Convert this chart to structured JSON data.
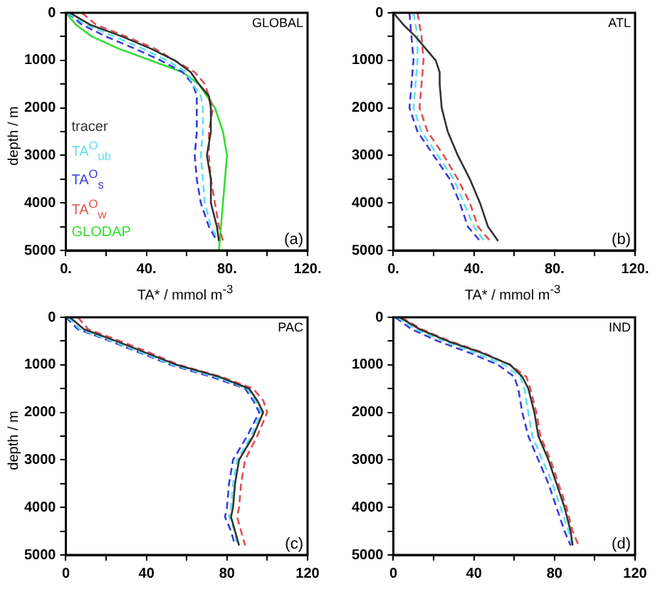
{
  "chart_data": [
    {
      "type": "line",
      "title": "GLOBAL",
      "annotations": [
        "(a)"
      ],
      "xlabel": "TA* / mmol m$^{-3}$",
      "ylabel": "depth / m",
      "legend": "left",
      "xlim": [
        0,
        120
      ],
      "xticks": [
        {
          "value": 0,
          "label": "0."
        },
        {
          "value": 20,
          "label": null
        },
        {
          "value": 40,
          "label": "40."
        },
        {
          "value": 60,
          "label": null
        },
        {
          "value": 80,
          "label": "80."
        },
        {
          "value": 100,
          "label": null
        },
        {
          "value": 120,
          "label": "120."
        }
      ],
      "ylim": [
        5000,
        0
      ],
      "yticks": [
        0,
        {
          "value": 500,
          "label": null
        },
        1000,
        {
          "value": 1500,
          "label": null
        },
        2000,
        {
          "value": 2500,
          "label": null
        },
        3000,
        {
          "value": 3500,
          "label": null
        },
        4000,
        {
          "value": 4500,
          "label": null
        },
        5000
      ],
      "series": [
        {
          "name": "tracer",
          "color": "#333333",
          "line_style": "solid",
          "x": [
            2,
            12,
            28,
            42,
            54,
            62,
            66,
            71,
            72,
            72,
            70,
            72,
            72,
            75,
            76
          ],
          "values": [
            0,
            250,
            500,
            750,
            1000,
            1250,
            1500,
            1750,
            2000,
            2500,
            3000,
            3500,
            4000,
            4500,
            4800
          ]
        },
        {
          "name": "TA$^{O}$$_{ub}$",
          "color": "#5ee0f0",
          "line_style": "dashed",
          "x": [
            1,
            10,
            24,
            38,
            50,
            60,
            63,
            67,
            68,
            68,
            67,
            68,
            69,
            72,
            76
          ],
          "values": [
            0,
            250,
            500,
            750,
            1000,
            1250,
            1500,
            1750,
            2000,
            2500,
            3000,
            3500,
            4000,
            4500,
            4800
          ]
        },
        {
          "name": "TA$^{O}$$_{s}$",
          "color": "#3c3cdc",
          "line_style": "dashed",
          "x": [
            1,
            8,
            20,
            34,
            47,
            58,
            63,
            65,
            65,
            65,
            64,
            65,
            67,
            71,
            75
          ],
          "values": [
            0,
            250,
            500,
            750,
            1000,
            1250,
            1500,
            1750,
            2000,
            2500,
            3000,
            3500,
            4000,
            4500,
            4800
          ]
        },
        {
          "name": "TA$^{O}$$_{w}$",
          "color": "#e05050",
          "line_style": "dashed",
          "x": [
            8,
            15,
            30,
            44,
            54,
            64,
            69,
            71,
            73,
            71,
            71,
            72,
            74,
            76,
            78
          ],
          "values": [
            0,
            250,
            500,
            750,
            1000,
            1250,
            1500,
            1750,
            2000,
            2500,
            3000,
            3500,
            4000,
            4500,
            4800
          ]
        },
        {
          "name": "GLODAP",
          "color": "#33dd33",
          "line_style": "solid",
          "x": [
            0,
            5,
            13,
            26,
            42,
            58,
            66,
            70,
            74,
            78,
            80,
            79,
            78,
            77,
            76
          ],
          "values": [
            0,
            250,
            500,
            750,
            1000,
            1250,
            1500,
            1750,
            2000,
            2500,
            3000,
            3500,
            4000,
            4500,
            5000
          ]
        }
      ]
    },
    {
      "type": "line",
      "title": "ATL",
      "annotations": [
        "(b)"
      ],
      "xlabel": "TA* / mmol m$^{-3}$",
      "xlim": [
        0,
        120
      ],
      "xticks": [
        {
          "value": 0,
          "label": "0."
        },
        {
          "value": 20,
          "label": null
        },
        {
          "value": 40,
          "label": "40."
        },
        {
          "value": 60,
          "label": null
        },
        {
          "value": 80,
          "label": "80."
        },
        {
          "value": 100,
          "label": null
        },
        {
          "value": 120,
          "label": "120."
        }
      ],
      "ylim": [
        5000,
        0
      ],
      "yticks": [
        0,
        {
          "value": 500,
          "label": null
        },
        1000,
        {
          "value": 1500,
          "label": null
        },
        2000,
        {
          "value": 2500,
          "label": null
        },
        3000,
        {
          "value": 3500,
          "label": null
        },
        4000,
        {
          "value": 4500,
          "label": null
        },
        5000
      ],
      "series": [
        {
          "color": "#333333",
          "line_style": "solid",
          "x": [
            0,
            5,
            11,
            16,
            21,
            23,
            23,
            24,
            27,
            32,
            38,
            43,
            47,
            52
          ],
          "values": [
            0,
            250,
            500,
            750,
            1000,
            1250,
            1500,
            2000,
            2500,
            3000,
            3500,
            4000,
            4500,
            4800
          ]
        },
        {
          "color": "#5ee0f0",
          "line_style": "dashed",
          "x": [
            10,
            12,
            12,
            11,
            10,
            14,
            22,
            30,
            35,
            40,
            45
          ],
          "values": [
            0,
            500,
            1000,
            1500,
            2000,
            2500,
            3000,
            3500,
            4000,
            4500,
            4800
          ]
        },
        {
          "color": "#3c3cdc",
          "line_style": "dashed",
          "x": [
            8,
            9,
            10,
            9,
            8,
            12,
            20,
            28,
            33,
            37,
            43
          ],
          "values": [
            0,
            500,
            1000,
            1500,
            2000,
            2500,
            3000,
            3500,
            4000,
            4500,
            4800
          ]
        },
        {
          "color": "#e05050",
          "line_style": "dashed",
          "x": [
            12,
            14,
            15,
            14,
            13,
            17,
            25,
            32,
            38,
            42,
            48
          ],
          "values": [
            0,
            500,
            1000,
            1500,
            2000,
            2500,
            3000,
            3500,
            4000,
            4500,
            4800
          ]
        }
      ]
    },
    {
      "type": "line",
      "title": "PAC",
      "annotations": [
        "(c)"
      ],
      "ylabel": "depth / m",
      "xlim": [
        0,
        120
      ],
      "xticks": [
        0,
        {
          "value": 20,
          "label": null
        },
        40,
        {
          "value": 60,
          "label": null
        },
        80,
        {
          "value": 100,
          "label": null
        },
        120
      ],
      "ylim": [
        5000,
        0
      ],
      "yticks": [
        0,
        {
          "value": 500,
          "label": null
        },
        1000,
        {
          "value": 1500,
          "label": null
        },
        2000,
        {
          "value": 2500,
          "label": null
        },
        3000,
        {
          "value": 3500,
          "label": null
        },
        4000,
        {
          "value": 4500,
          "label": null
        },
        5000
      ],
      "series": [
        {
          "color": "#333333",
          "line_style": "solid",
          "x": [
            2,
            9,
            25,
            40,
            55,
            76,
            91,
            95,
            98,
            93,
            86,
            84,
            83,
            82,
            84,
            86
          ],
          "values": [
            0,
            250,
            500,
            750,
            1000,
            1250,
            1500,
            1750,
            2000,
            2500,
            3000,
            3500,
            4000,
            4200,
            4500,
            4800
          ]
        },
        {
          "color": "#5ee0f0",
          "line_style": "dashed",
          "x": [
            1,
            7,
            23,
            38,
            53,
            74,
            90,
            94,
            97,
            92,
            85,
            83,
            82,
            81,
            84,
            85
          ],
          "values": [
            0,
            250,
            500,
            750,
            1000,
            1250,
            1500,
            1750,
            2000,
            2500,
            3000,
            3500,
            4000,
            4200,
            4500,
            4800
          ]
        },
        {
          "color": "#3c3cdc",
          "line_style": "dashed",
          "x": [
            0,
            6,
            22,
            37,
            52,
            72,
            89,
            93,
            96,
            90,
            83,
            81,
            80,
            79,
            82,
            84
          ],
          "values": [
            0,
            250,
            500,
            750,
            1000,
            1250,
            1500,
            1750,
            2000,
            2500,
            3000,
            3500,
            4000,
            4200,
            4500,
            4800
          ]
        },
        {
          "color": "#e05050",
          "line_style": "dashed",
          "x": [
            6,
            11,
            27,
            42,
            56,
            77,
            93,
            98,
            100,
            95,
            89,
            87,
            86,
            85,
            87,
            89
          ],
          "values": [
            0,
            250,
            500,
            750,
            1000,
            1250,
            1500,
            1750,
            2000,
            2500,
            3000,
            3500,
            4000,
            4200,
            4500,
            4800
          ]
        }
      ]
    },
    {
      "type": "line",
      "title": "IND",
      "annotations": [
        "(d)"
      ],
      "xlim": [
        0,
        120
      ],
      "xticks": [
        0,
        {
          "value": 20,
          "label": null
        },
        40,
        {
          "value": 60,
          "label": null
        },
        80,
        {
          "value": 100,
          "label": null
        },
        120
      ],
      "ylim": [
        5000,
        0
      ],
      "yticks": [
        0,
        {
          "value": 500,
          "label": null
        },
        1000,
        {
          "value": 1500,
          "label": null
        },
        2000,
        {
          "value": 2500,
          "label": null
        },
        3000,
        {
          "value": 3500,
          "label": null
        },
        4000,
        {
          "value": 4500,
          "label": null
        },
        5000
      ],
      "series": [
        {
          "color": "#333333",
          "line_style": "solid",
          "x": [
            3,
            13,
            27,
            44,
            58,
            64,
            67,
            70,
            72,
            77,
            81,
            85,
            88,
            89
          ],
          "values": [
            0,
            250,
            500,
            750,
            1000,
            1250,
            1500,
            2000,
            2500,
            3000,
            3500,
            4000,
            4500,
            4800
          ]
        },
        {
          "color": "#5ee0f0",
          "line_style": "dashed",
          "x": [
            2,
            11,
            25,
            41,
            55,
            63,
            65,
            67,
            69,
            74,
            79,
            83,
            87,
            89
          ],
          "values": [
            0,
            250,
            500,
            750,
            1000,
            1250,
            1500,
            2000,
            2500,
            3000,
            3500,
            4000,
            4500,
            4800
          ]
        },
        {
          "color": "#3c3cdc",
          "line_style": "dashed",
          "x": [
            1,
            9,
            22,
            38,
            52,
            60,
            62,
            64,
            67,
            72,
            77,
            81,
            85,
            88
          ],
          "values": [
            0,
            250,
            500,
            750,
            1000,
            1250,
            1500,
            2000,
            2500,
            3000,
            3500,
            4000,
            4500,
            4800
          ]
        },
        {
          "color": "#e05050",
          "line_style": "dashed",
          "x": [
            4,
            14,
            28,
            45,
            58,
            66,
            68,
            71,
            73,
            78,
            82,
            86,
            89,
            92
          ],
          "values": [
            0,
            250,
            500,
            750,
            1000,
            1250,
            1500,
            2000,
            2500,
            3000,
            3500,
            4000,
            4500,
            4800
          ]
        }
      ]
    }
  ]
}
